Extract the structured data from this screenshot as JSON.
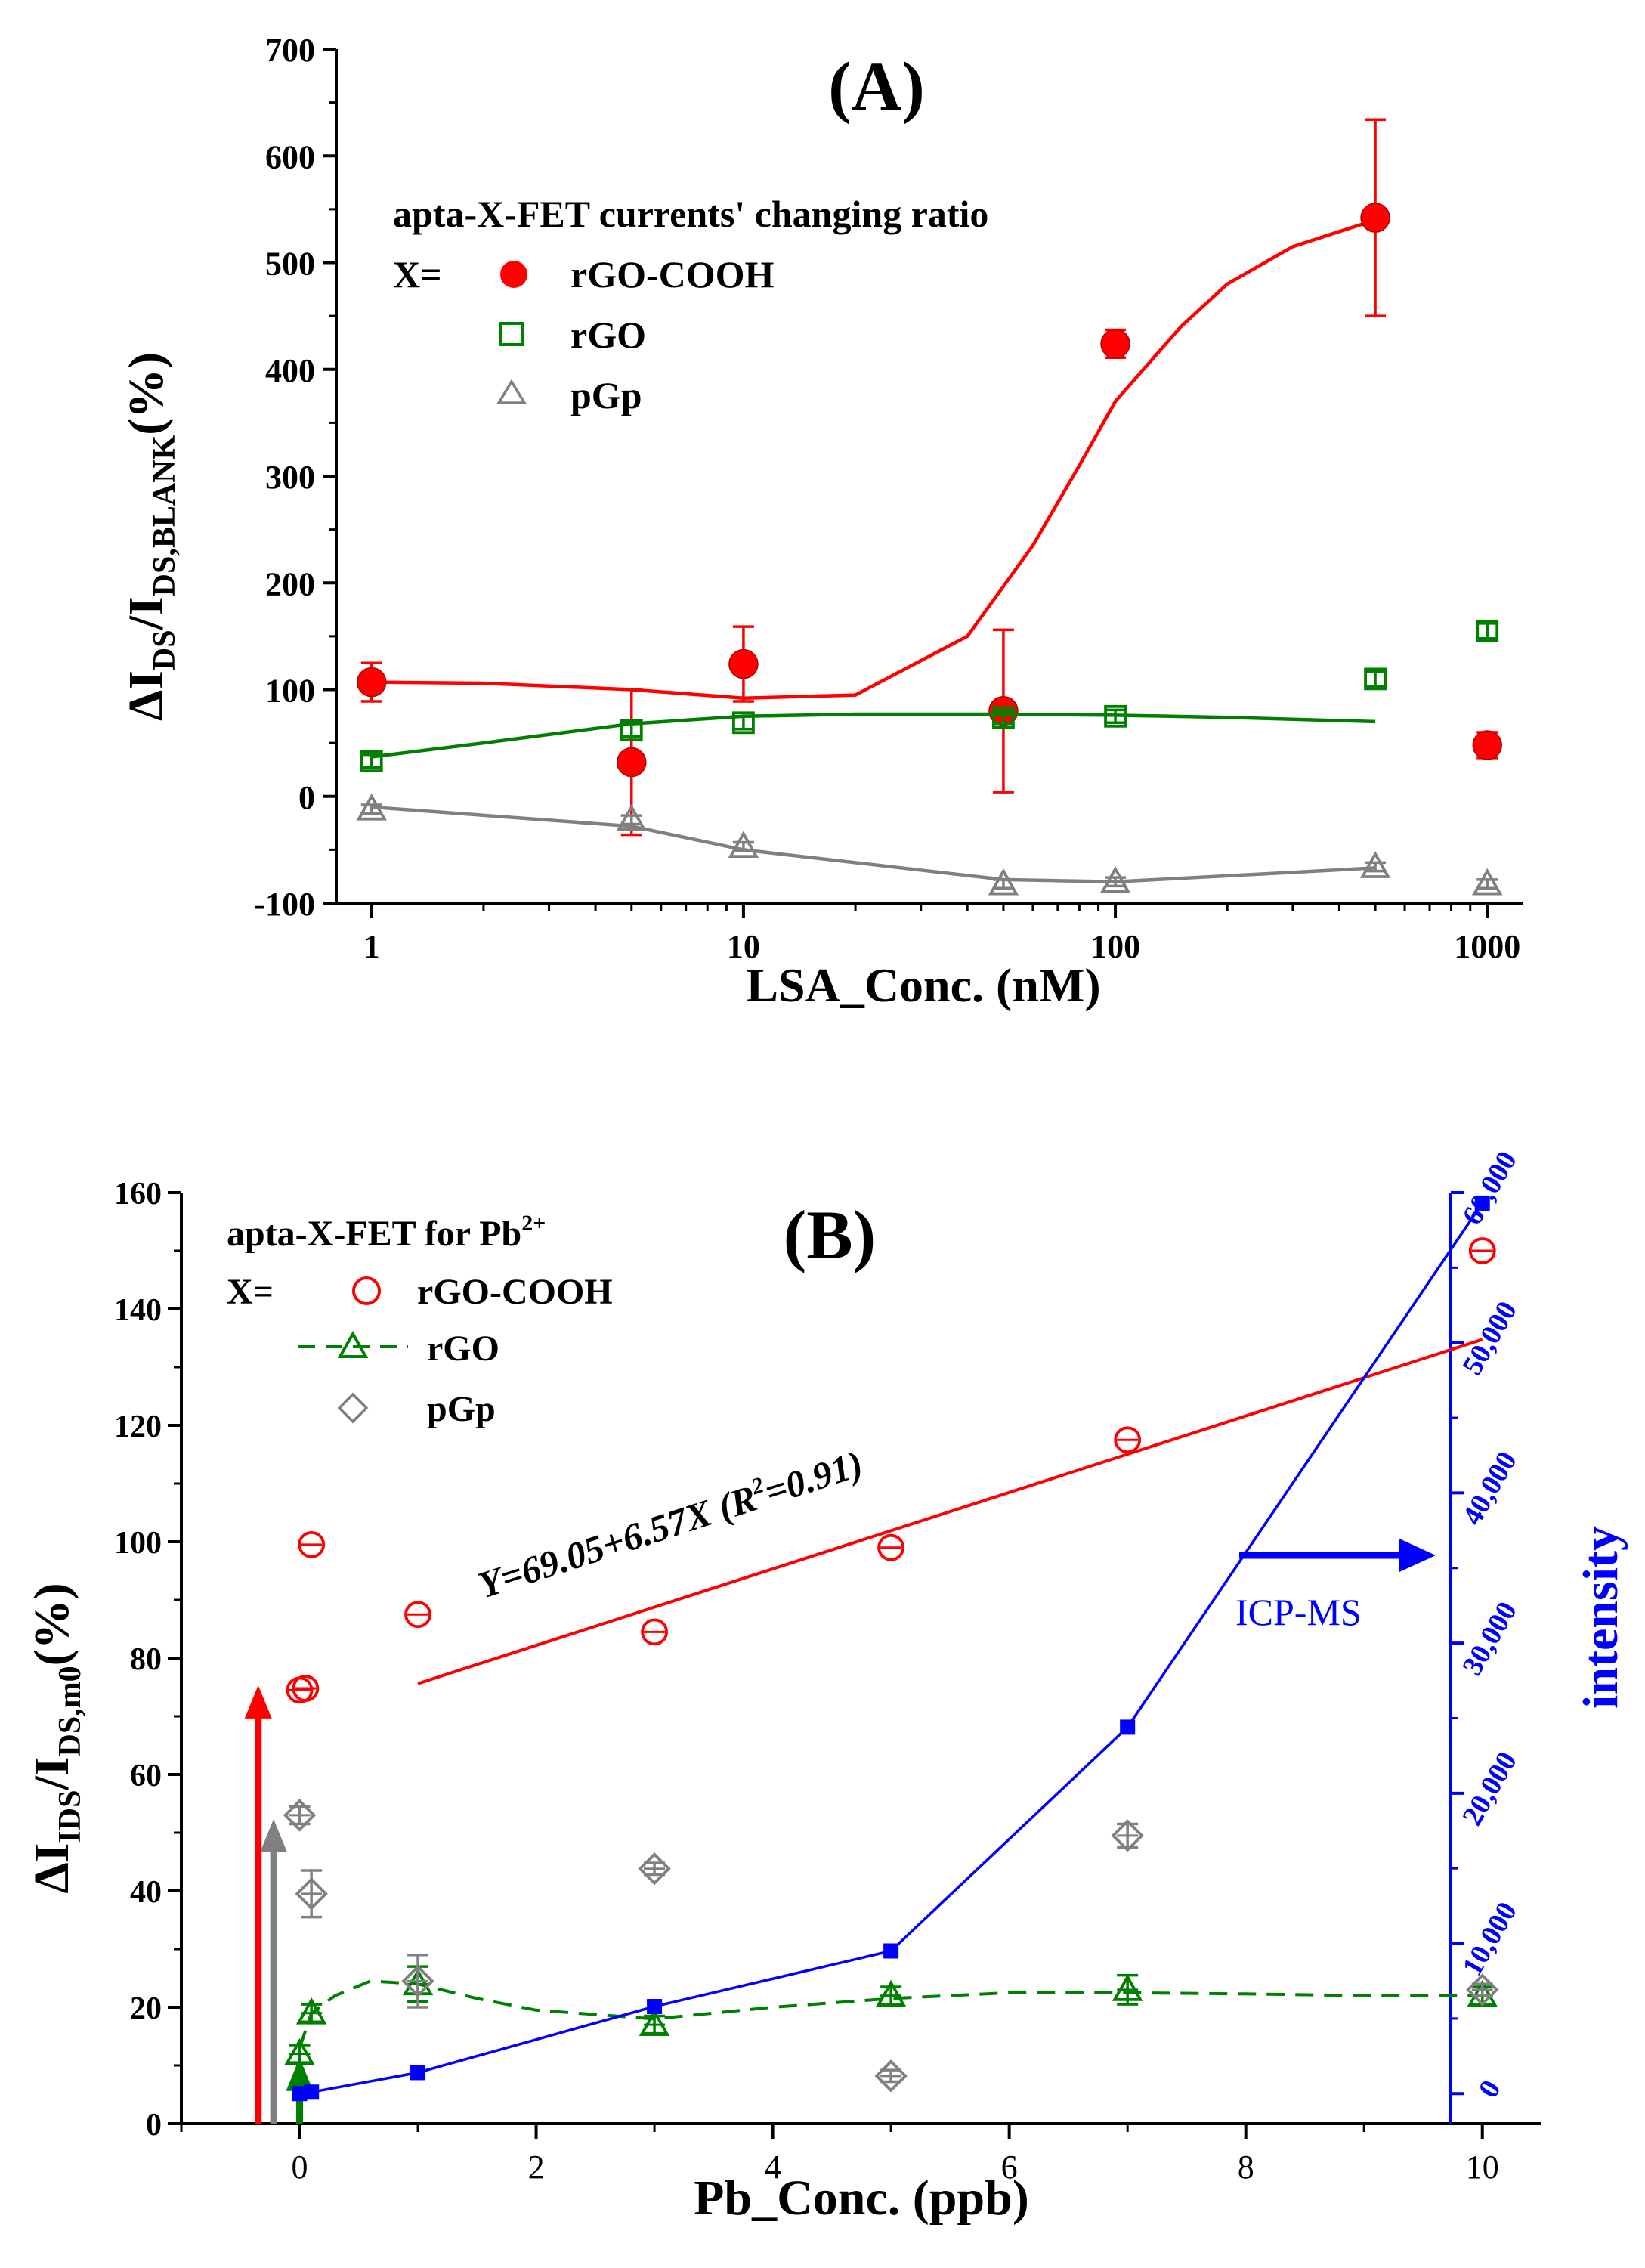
{
  "chart_data": [
    {
      "id": "A",
      "type": "scatter",
      "panel_label": "(A)",
      "xscale": "log",
      "xlabel": "LSA_Conc. (nM)",
      "ylabel": {
        "delta": "ΔI",
        "sub1": "DS",
        "mid": "/I",
        "sub2": "DS,BLANK",
        "tail": "(%)"
      },
      "xlim": [
        1,
        1000
      ],
      "ylim": [
        -100,
        700
      ],
      "xticks": [
        1,
        10,
        100,
        1000
      ],
      "xtick_labels": [
        "1",
        "10",
        "100",
        "1000"
      ],
      "yticks": [
        -100,
        0,
        100,
        200,
        300,
        400,
        500,
        600,
        700
      ],
      "ytick_labels": [
        "-100",
        "0",
        "100",
        "200",
        "300",
        "400",
        "500",
        "600",
        "700"
      ],
      "legend": {
        "title": "apta-X-FET currents' changing ratio",
        "prefix": "X=",
        "placement": "top-left",
        "entries": [
          "rGO-COOH",
          "rGO",
          "pGp"
        ]
      },
      "series": [
        {
          "name": "rGO-COOH",
          "color": "#ff0000",
          "marker": "filled-circle",
          "x": [
            1,
            5,
            10,
            50,
            100,
            500,
            1000
          ],
          "y": [
            107,
            32,
            124,
            80,
            424,
            542,
            48
          ],
          "err": [
            18,
            68,
            35,
            76,
            13,
            92,
            12
          ],
          "fit": {
            "x": [
              1,
              2,
              5,
              10,
              20,
              40,
              60,
              80,
              100,
              150,
              200,
              300,
              500
            ],
            "y": [
              107,
              106,
              100,
              92,
              95,
              150,
              235,
              310,
              370,
              440,
              480,
              515,
              540
            ]
          }
        },
        {
          "name": "rGO",
          "color": "#008000",
          "marker": "open-square",
          "x": [
            1,
            5,
            10,
            50,
            100,
            500,
            1000
          ],
          "y": [
            33,
            62,
            69,
            74,
            75,
            110,
            155
          ],
          "err": [
            6,
            6,
            6,
            6,
            6,
            7,
            7
          ],
          "fit": {
            "x": [
              1,
              2,
              5,
              10,
              20,
              50,
              100,
              200,
              500
            ],
            "y": [
              37,
              50,
              68,
              75,
              77,
              77,
              76,
              74,
              70
            ]
          }
        },
        {
          "name": "pGp",
          "color": "#808080",
          "marker": "open-triangle",
          "x": [
            1,
            5,
            10,
            50,
            100,
            500,
            1000
          ],
          "y": [
            -12,
            -22,
            -47,
            -82,
            -80,
            -66,
            -82
          ],
          "err": [
            4,
            4,
            4,
            4,
            4,
            4,
            4
          ],
          "fit": {
            "x": [
              1,
              5,
              10,
              50,
              100,
              500
            ],
            "y": [
              -10,
              -28,
              -50,
              -78,
              -80,
              -67
            ]
          }
        }
      ]
    },
    {
      "id": "B",
      "type": "scatter",
      "panel_label": "(B)",
      "xlabel": "Pb_Conc. (ppb)",
      "ylabel": {
        "delta": "ΔI",
        "sub1": "IDS",
        "mid": "/I",
        "sub2": "DS,m0",
        "tail": "(%)"
      },
      "y2label": "intensity",
      "xlim": [
        -1,
        10.5
      ],
      "ylim": [
        0,
        160
      ],
      "y2lim": [
        -2000,
        60000
      ],
      "xticks": [
        0,
        2,
        4,
        6,
        8,
        10
      ],
      "xtick_labels": [
        "0",
        "2",
        "4",
        "6",
        "8",
        "10"
      ],
      "yticks": [
        0,
        20,
        40,
        60,
        80,
        100,
        120,
        140,
        160
      ],
      "ytick_labels": [
        "0",
        "20",
        "40",
        "60",
        "80",
        "100",
        "120",
        "140",
        "160"
      ],
      "y2ticks": [
        0,
        10000,
        20000,
        30000,
        40000,
        50000,
        60000
      ],
      "y2tick_labels": [
        "0",
        "10,000",
        "20,000",
        "30,000",
        "40,000",
        "50,000",
        "60,000"
      ],
      "legend": {
        "title": "apta-X-FET for Pb",
        "title_sup": "2+",
        "prefix": "X=",
        "placement": "top-left",
        "entries": [
          "rGO-COOH",
          "rGO",
          "pGp"
        ]
      },
      "series": [
        {
          "name": "rGO-COOH",
          "color": "#ff0000",
          "marker": "open-circle",
          "x": [
            0,
            0.05,
            0.1,
            1,
            3,
            5,
            7,
            10
          ],
          "y": [
            74.5,
            74.8,
            99.5,
            87.5,
            84.5,
            99,
            117.5,
            150
          ]
        },
        {
          "name": "rGO",
          "color": "#008000",
          "marker": "open-triangle",
          "x": [
            0,
            0.1,
            1,
            3,
            5,
            7,
            10
          ],
          "y": [
            12,
            19,
            24,
            17,
            22,
            23,
            22
          ],
          "err": [
            1.5,
            1.5,
            3,
            1.5,
            1.5,
            2.5,
            1.5
          ],
          "fit": {
            "x": [
              0,
              0.1,
              0.3,
              0.6,
              1,
              1.5,
              2,
              3,
              4,
              5,
              6,
              7,
              8,
              9,
              10
            ],
            "y": [
              13,
              19,
              22,
              24.5,
              24,
              21.5,
              19.5,
              18,
              20,
              21.5,
              22.5,
              22.5,
              22.3,
              22,
              22
            ]
          }
        },
        {
          "name": "pGp",
          "color": "#808080",
          "marker": "open-diamond",
          "x": [
            0,
            0.1,
            1,
            3,
            5,
            7,
            10
          ],
          "y": [
            53,
            39.5,
            24.5,
            43.8,
            8.2,
            49.5,
            23
          ],
          "err": [
            1.5,
            4,
            4.5,
            1,
            1,
            2,
            1
          ]
        },
        {
          "name": "ICP-MS",
          "color": "#0000ff",
          "marker": "filled-square",
          "axis": "y2",
          "x": [
            0,
            0.1,
            1,
            3,
            5,
            7,
            10
          ],
          "y": [
            0,
            100,
            1400,
            5800,
            9500,
            24400,
            59300
          ]
        }
      ],
      "fit_line": {
        "label": "Y=69.05+6.57X  (R",
        "label_sup": "2",
        "label_tail": "=0.91)",
        "intercept": 69.05,
        "slope": 6.57,
        "x_range": [
          1,
          10
        ],
        "color": "#ff0000"
      },
      "annotation": {
        "label": "ICP-MS",
        "color": "#0000ff",
        "direction": "right"
      },
      "arrows": [
        {
          "color": "#ff0000",
          "x": -0.35,
          "from": 0,
          "to": 73
        },
        {
          "color": "#808080",
          "x": -0.22,
          "from": 0,
          "to": 50
        },
        {
          "color": "#008000",
          "x": 0,
          "from": 0,
          "to": 9
        }
      ]
    }
  ]
}
